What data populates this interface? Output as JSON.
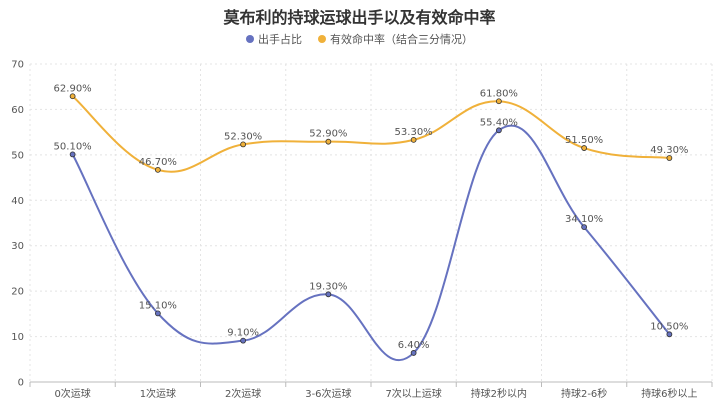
{
  "chart_data": {
    "type": "line",
    "title": "莫布利的持球运球出手以及有效命中率",
    "categories": [
      "0次运球",
      "1次运球",
      "2次运球",
      "3-6次运球",
      "7次以上运球",
      "持球2秒以内",
      "持球2-6秒",
      "持球6秒以上"
    ],
    "series": [
      {
        "name": "出手占比",
        "color": "#6672c0",
        "values": [
          50.1,
          15.1,
          9.1,
          19.3,
          6.4,
          55.4,
          34.1,
          10.5
        ],
        "labels": [
          "50.10%",
          "15.10%",
          "9.10%",
          "19.30%",
          "6.40%",
          "55.40%",
          "34.10%",
          "10.50%"
        ]
      },
      {
        "name": "有效命中率（结合三分情况）",
        "color": "#f0b13a",
        "values": [
          62.9,
          46.7,
          52.3,
          52.9,
          53.3,
          61.8,
          51.5,
          49.3
        ],
        "labels": [
          "62.90%",
          "46.70%",
          "52.30%",
          "52.90%",
          "53.30%",
          "61.80%",
          "51.50%",
          "49.30%"
        ]
      }
    ],
    "ylim": [
      0,
      70
    ],
    "yticks": [
      0,
      10,
      20,
      30,
      40,
      50,
      60,
      70
    ],
    "grid": true,
    "legend": "top-center",
    "xlabel": "",
    "ylabel": ""
  }
}
